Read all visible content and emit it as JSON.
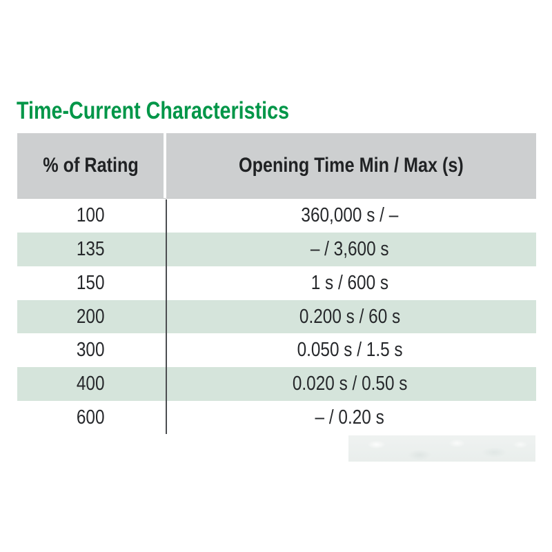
{
  "title": {
    "text": "Time-Current Characteristics",
    "color": "#009648"
  },
  "table": {
    "columns": {
      "rating": "% of Rating",
      "time": "Opening Time Min / Max (s)"
    },
    "rows": [
      {
        "rating": "100",
        "time": "360,000 s / –"
      },
      {
        "rating": "135",
        "time": "– / 3,600 s"
      },
      {
        "rating": "150",
        "time": "1 s / 600 s"
      },
      {
        "rating": "200",
        "time": "0.200 s / 60 s"
      },
      {
        "rating": "300",
        "time": "0.050 s / 1.5 s"
      },
      {
        "rating": "400",
        "time": "0.020 s / 0.50 s"
      },
      {
        "rating": "600",
        "time": "– / 0.20 s"
      }
    ],
    "colors": {
      "header_bg": "#cdcfd0",
      "shaded_row_bg": "#d5e4db",
      "plain_row_bg": "#ffffff",
      "divider_line": "#4b4d50",
      "text": "#26282b"
    }
  },
  "artifact": {
    "description": "blurred light-gray smudge below table, bottom right"
  },
  "chart_data": {
    "type": "table",
    "title": "Time-Current Characteristics",
    "columns": [
      "% of Rating",
      "Opening Time Min / Max (s)"
    ],
    "rows": [
      {
        "pct_of_rating": 100,
        "opening_time_min_s": 360000,
        "opening_time_max_s": null,
        "display": "360,000 s / –"
      },
      {
        "pct_of_rating": 135,
        "opening_time_min_s": null,
        "opening_time_max_s": 3600,
        "display": "– / 3,600 s"
      },
      {
        "pct_of_rating": 150,
        "opening_time_min_s": 1,
        "opening_time_max_s": 600,
        "display": "1 s / 600 s"
      },
      {
        "pct_of_rating": 200,
        "opening_time_min_s": 0.2,
        "opening_time_max_s": 60,
        "display": "0.200 s / 60 s"
      },
      {
        "pct_of_rating": 300,
        "opening_time_min_s": 0.05,
        "opening_time_max_s": 1.5,
        "display": "0.050 s / 1.5 s"
      },
      {
        "pct_of_rating": 400,
        "opening_time_min_s": 0.02,
        "opening_time_max_s": 0.5,
        "display": "0.020 s / 0.50 s"
      },
      {
        "pct_of_rating": 600,
        "opening_time_min_s": null,
        "opening_time_max_s": 0.2,
        "display": "– / 0.20 s"
      }
    ],
    "layout": {
      "shading": "alternating rows, even rows pale green",
      "grid": "vertical divider between columns only"
    }
  }
}
